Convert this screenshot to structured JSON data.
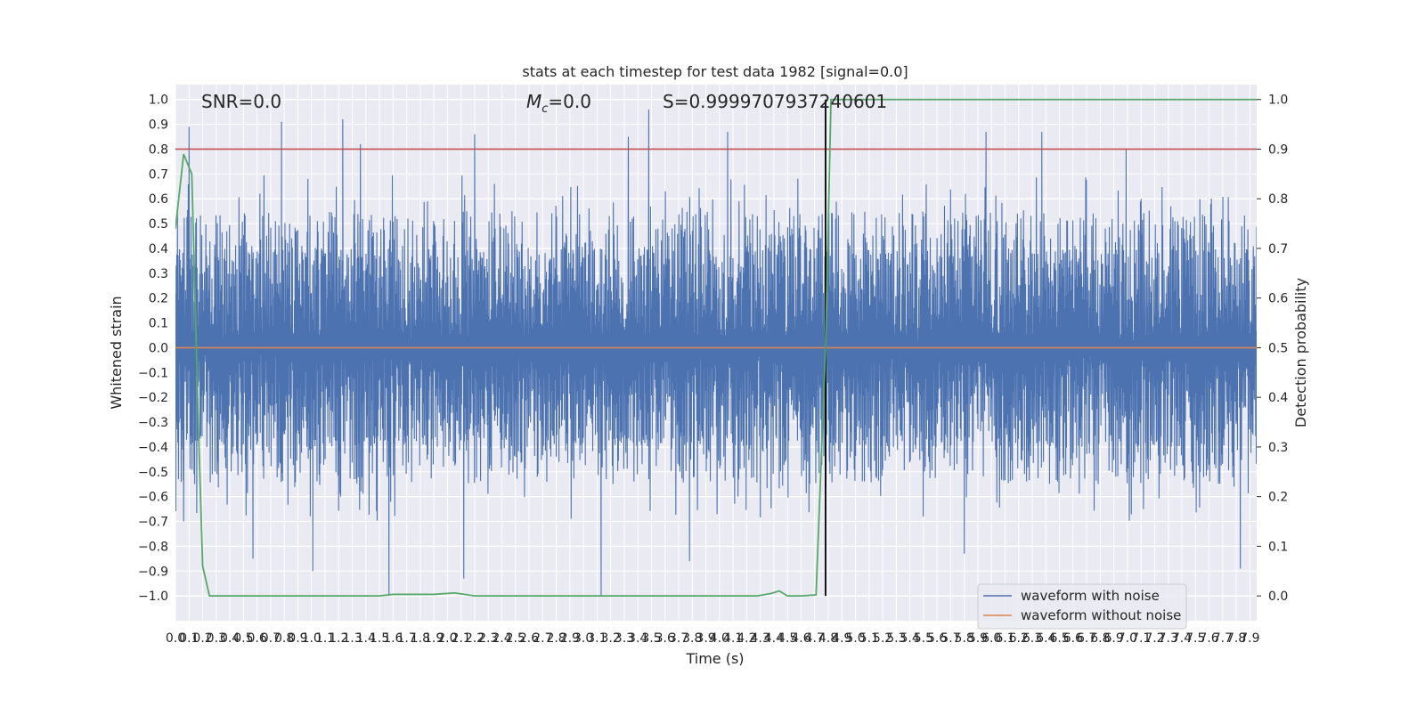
{
  "chart_data": {
    "type": "line",
    "title": "stats at each timestep for test data 1982 [signal=0.0]",
    "xlabel": "Time (s)",
    "ylabel_left": "Whitened strain",
    "ylabel_right": "Detection probability",
    "xlim": [
      0,
      7.95
    ],
    "ylim_left": [
      -1.1,
      1.06
    ],
    "ylim_right": [
      -0.05,
      1.03
    ],
    "x_ticks": [
      "0.0",
      "0.1",
      "0.2",
      "0.3",
      "0.4",
      "0.5",
      "0.6",
      "0.7",
      "0.8",
      "0.9",
      "1.0",
      "1.1",
      "1.2",
      "1.3",
      "1.4",
      "1.5",
      "1.6",
      "1.7",
      "1.8",
      "1.9",
      "2.0",
      "2.1",
      "2.2",
      "2.3",
      "2.4",
      "2.5",
      "2.6",
      "2.7",
      "2.8",
      "2.9",
      "3.0",
      "3.1",
      "3.2",
      "3.3",
      "3.4",
      "3.5",
      "3.6",
      "3.7",
      "3.8",
      "3.9",
      "4.0",
      "4.1",
      "4.2",
      "4.3",
      "4.4",
      "4.5",
      "4.6",
      "4.7",
      "4.8",
      "4.9",
      "5.0",
      "5.1",
      "5.2",
      "5.3",
      "5.4",
      "5.5",
      "5.6",
      "5.7",
      "5.8",
      "5.9",
      "6.0",
      "6.1",
      "6.2",
      "6.3",
      "6.4",
      "6.5",
      "6.6",
      "6.7",
      "6.8",
      "6.9",
      "7.0",
      "7.1",
      "7.2",
      "7.3",
      "7.4",
      "7.5",
      "7.6",
      "7.7",
      "7.8",
      "7.9"
    ],
    "y_ticks_left": [
      "−1.0",
      "−0.9",
      "−0.8",
      "−0.7",
      "−0.6",
      "−0.5",
      "−0.4",
      "−0.3",
      "−0.2",
      "−0.1",
      "0.0",
      "0.1",
      "0.2",
      "0.3",
      "0.4",
      "0.5",
      "0.6",
      "0.7",
      "0.8",
      "0.9",
      "1.0"
    ],
    "y_ticks_right": [
      "0.0",
      "0.1",
      "0.2",
      "0.3",
      "0.4",
      "0.5",
      "0.6",
      "0.7",
      "0.8",
      "0.9",
      "1.0"
    ],
    "annotations": {
      "snr": "SNR=0.0",
      "mc": "=0.0",
      "mc_symbol": "M",
      "mc_sub": "c",
      "s": "S=0.9999707937240601"
    },
    "threshold_right": 0.9,
    "vline_x": 4.78,
    "grid": true,
    "legend_position": "lower-right",
    "series": [
      {
        "name": "waveform with noise",
        "color": "#4c72b0",
        "axis": "left",
        "kind": "dense_noise",
        "peaks_positive": [
          [
            0.1,
            0.89
          ],
          [
            0.78,
            0.91
          ],
          [
            1.23,
            0.92
          ],
          [
            1.36,
            0.82
          ],
          [
            2.2,
            0.86
          ],
          [
            3.33,
            0.85
          ],
          [
            3.48,
            0.96
          ],
          [
            4.06,
            0.87
          ],
          [
            5.96,
            0.87
          ],
          [
            6.37,
            0.87
          ],
          [
            6.99,
            0.8
          ]
        ],
        "peaks_negative": [
          [
            0.06,
            -0.7
          ],
          [
            0.57,
            -0.85
          ],
          [
            1.01,
            -0.9
          ],
          [
            1.57,
            -1.0
          ],
          [
            2.12,
            -0.93
          ],
          [
            3.13,
            -1.0
          ],
          [
            3.78,
            -0.86
          ],
          [
            5.8,
            -0.83
          ],
          [
            7.83,
            -0.89
          ]
        ]
      },
      {
        "name": "waveform without noise",
        "color": "#dd8452",
        "axis": "left",
        "x": [
          0,
          7.95
        ],
        "y": [
          0.0,
          0.0
        ]
      },
      {
        "name": "",
        "color": "#55a868",
        "axis": "right",
        "x": [
          0.0,
          0.06,
          0.12,
          0.17,
          0.2,
          0.25,
          0.3,
          0.5,
          1.0,
          1.5,
          1.6,
          1.9,
          2.05,
          2.2,
          3.0,
          4.0,
          4.28,
          4.38,
          4.44,
          4.5,
          4.6,
          4.71,
          4.78,
          4.82,
          5.0,
          7.95
        ],
        "y": [
          0.74,
          0.89,
          0.85,
          0.33,
          0.06,
          0.0,
          0.0,
          0.0,
          0.0,
          0.0,
          0.003,
          0.003,
          0.006,
          0.0,
          0.0,
          0.0,
          0.0,
          0.005,
          0.01,
          0.0,
          0.0,
          0.002,
          0.5,
          1.0,
          1.0,
          1.0
        ]
      },
      {
        "name": "",
        "color": "#c44e52",
        "axis": "right",
        "x": [
          0,
          7.95
        ],
        "y": [
          0.9,
          0.9
        ]
      }
    ]
  }
}
